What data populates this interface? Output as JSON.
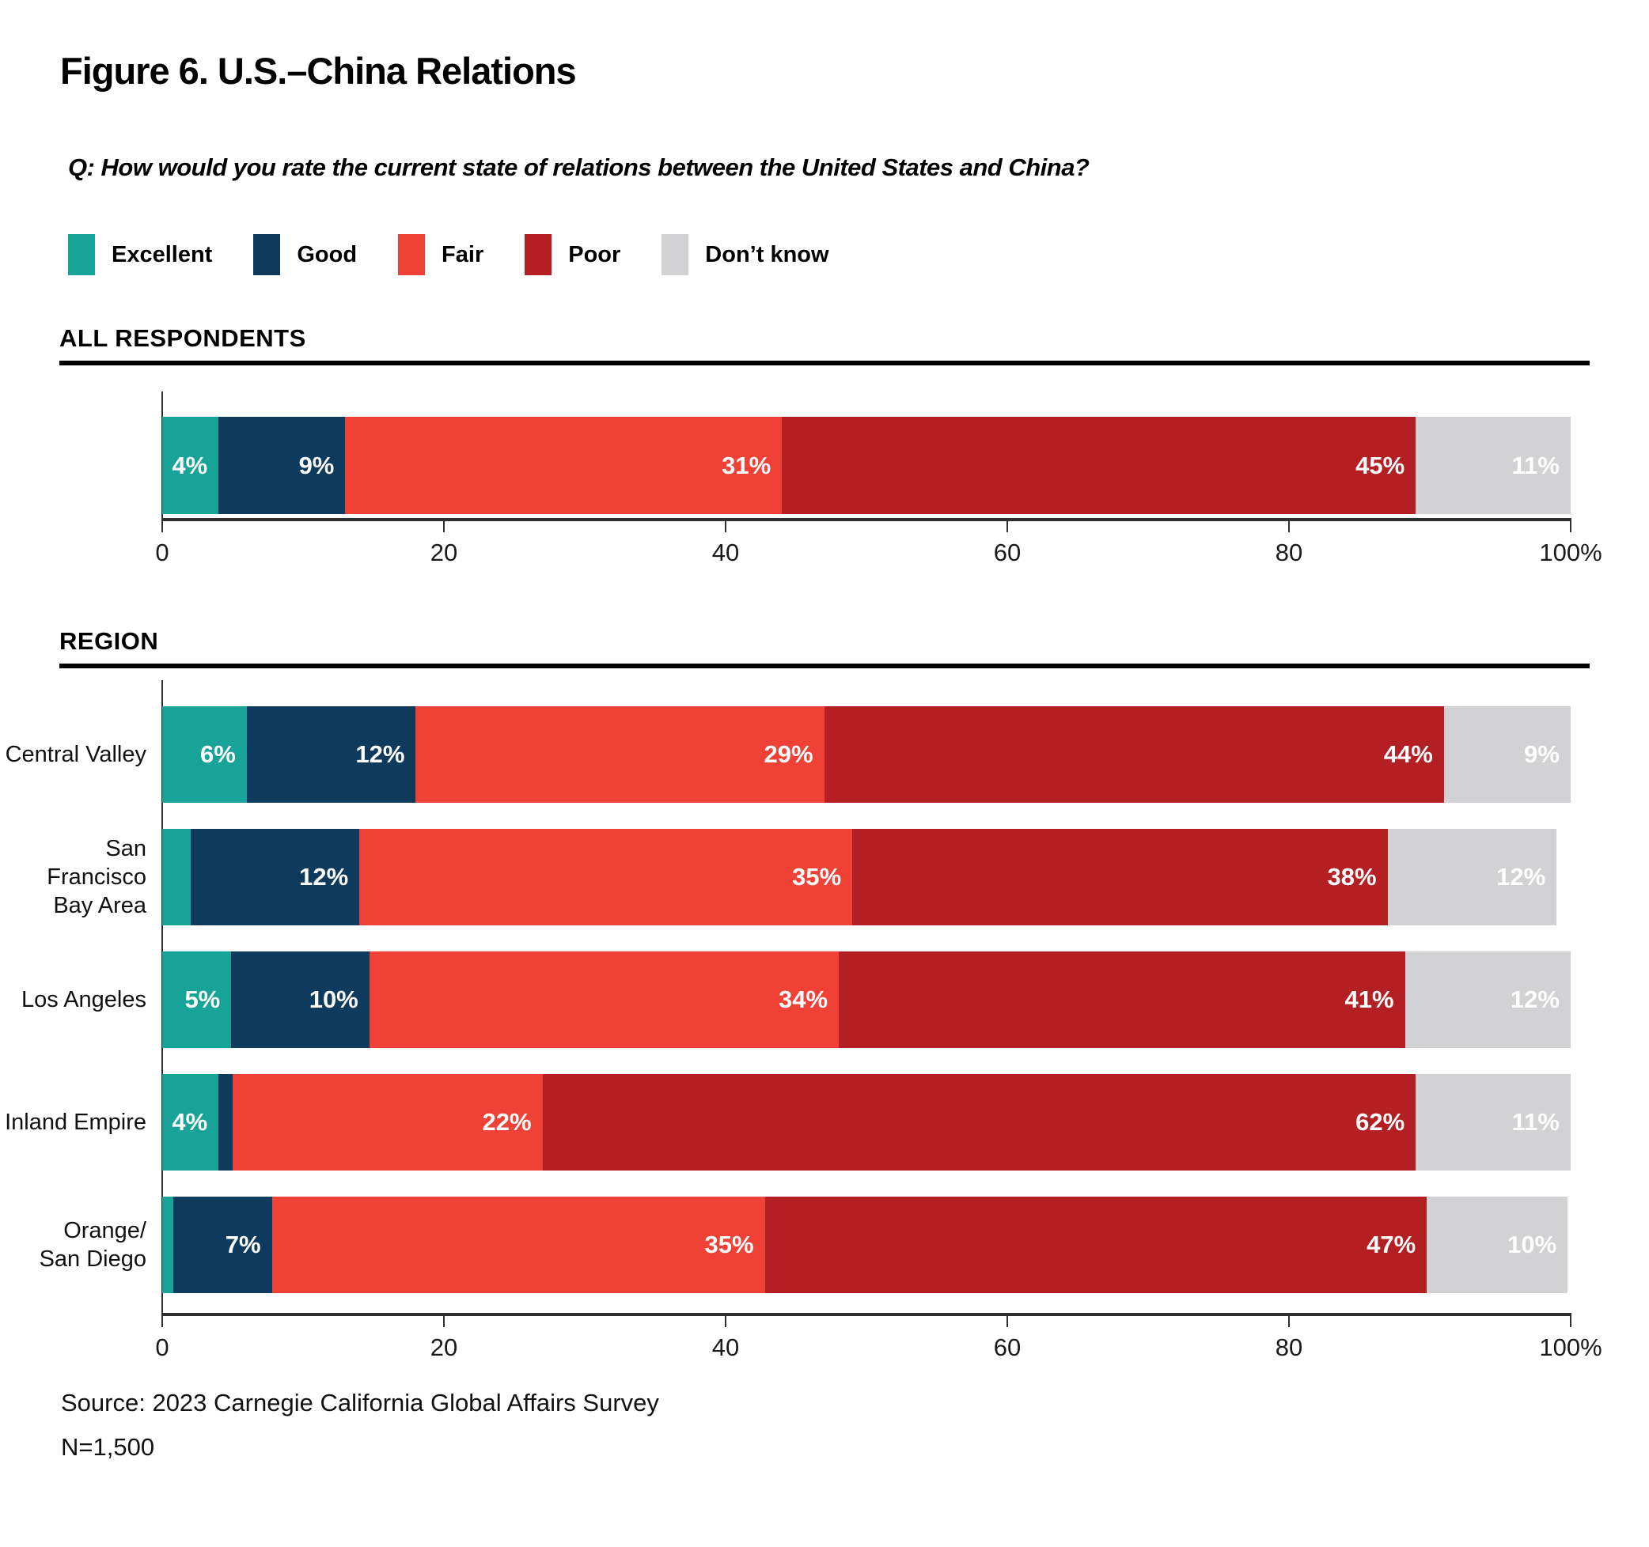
{
  "figure": {
    "title": "Figure 6. U.S.–China Relations",
    "question": "Q: How would you rate the current state of relations between the United States and China?",
    "source": "Source: 2023 Carnegie California Global Affairs Survey",
    "sample": "N=1,500"
  },
  "legend": [
    {
      "label": "Excellent",
      "color": "#17A398"
    },
    {
      "label": "Good",
      "color": "#0E3A5E"
    },
    {
      "label": "Fair",
      "color": "#EF4136"
    },
    {
      "label": "Poor",
      "color": "#B41F24"
    },
    {
      "label": "Don’t know",
      "color": "#D2D2D4"
    }
  ],
  "colors": {
    "axis": "#2e2e2e",
    "section_rule": "#000000",
    "bar_value_text": "#ffffff",
    "background": "#ffffff"
  },
  "axis": {
    "tick_values": [
      0,
      20,
      40,
      60,
      80,
      100
    ],
    "tick_labels": [
      "0",
      "20",
      "40",
      "60",
      "80",
      "100%"
    ]
  },
  "label_rule": {
    "min_value_for_label": 4,
    "format": "{value}%"
  },
  "chart_data": [
    {
      "type": "bar",
      "subtype": "stacked-horizontal-percent",
      "title": "ALL RESPONDENTS",
      "categories": [
        "All respondents"
      ],
      "display_categories": [
        ""
      ],
      "series": [
        {
          "name": "Excellent",
          "values": [
            4
          ]
        },
        {
          "name": "Good",
          "values": [
            9
          ]
        },
        {
          "name": "Fair",
          "values": [
            31
          ]
        },
        {
          "name": "Poor",
          "values": [
            45
          ]
        },
        {
          "name": "Don’t know",
          "values": [
            11
          ]
        }
      ],
      "xlim": [
        0,
        100
      ],
      "xticks": [
        0,
        20,
        40,
        60,
        80,
        100
      ],
      "grid": false,
      "legend_position": "top"
    },
    {
      "type": "bar",
      "subtype": "stacked-horizontal-percent",
      "title": "REGION",
      "categories": [
        "Central Valley",
        "San Francisco Bay Area",
        "Los Angeles",
        "Inland Empire",
        "Orange/San Diego"
      ],
      "display_categories": [
        "Central Valley",
        "San Francisco\nBay Area",
        "Los Angeles",
        "Inland Empire",
        "Orange/\nSan Diego"
      ],
      "series": [
        {
          "name": "Excellent",
          "values": [
            6,
            2,
            5,
            4,
            0.3
          ]
        },
        {
          "name": "Good",
          "values": [
            12,
            12,
            10,
            1,
            7
          ]
        },
        {
          "name": "Fair",
          "values": [
            29,
            35,
            34,
            22,
            35
          ]
        },
        {
          "name": "Poor",
          "values": [
            44,
            38,
            41,
            62,
            47
          ]
        },
        {
          "name": "Don’t know",
          "values": [
            9,
            12,
            12,
            11,
            10
          ]
        }
      ],
      "xlim": [
        0,
        100
      ],
      "xticks": [
        0,
        20,
        40,
        60,
        80,
        100
      ],
      "grid": false,
      "legend_position": "top"
    }
  ]
}
